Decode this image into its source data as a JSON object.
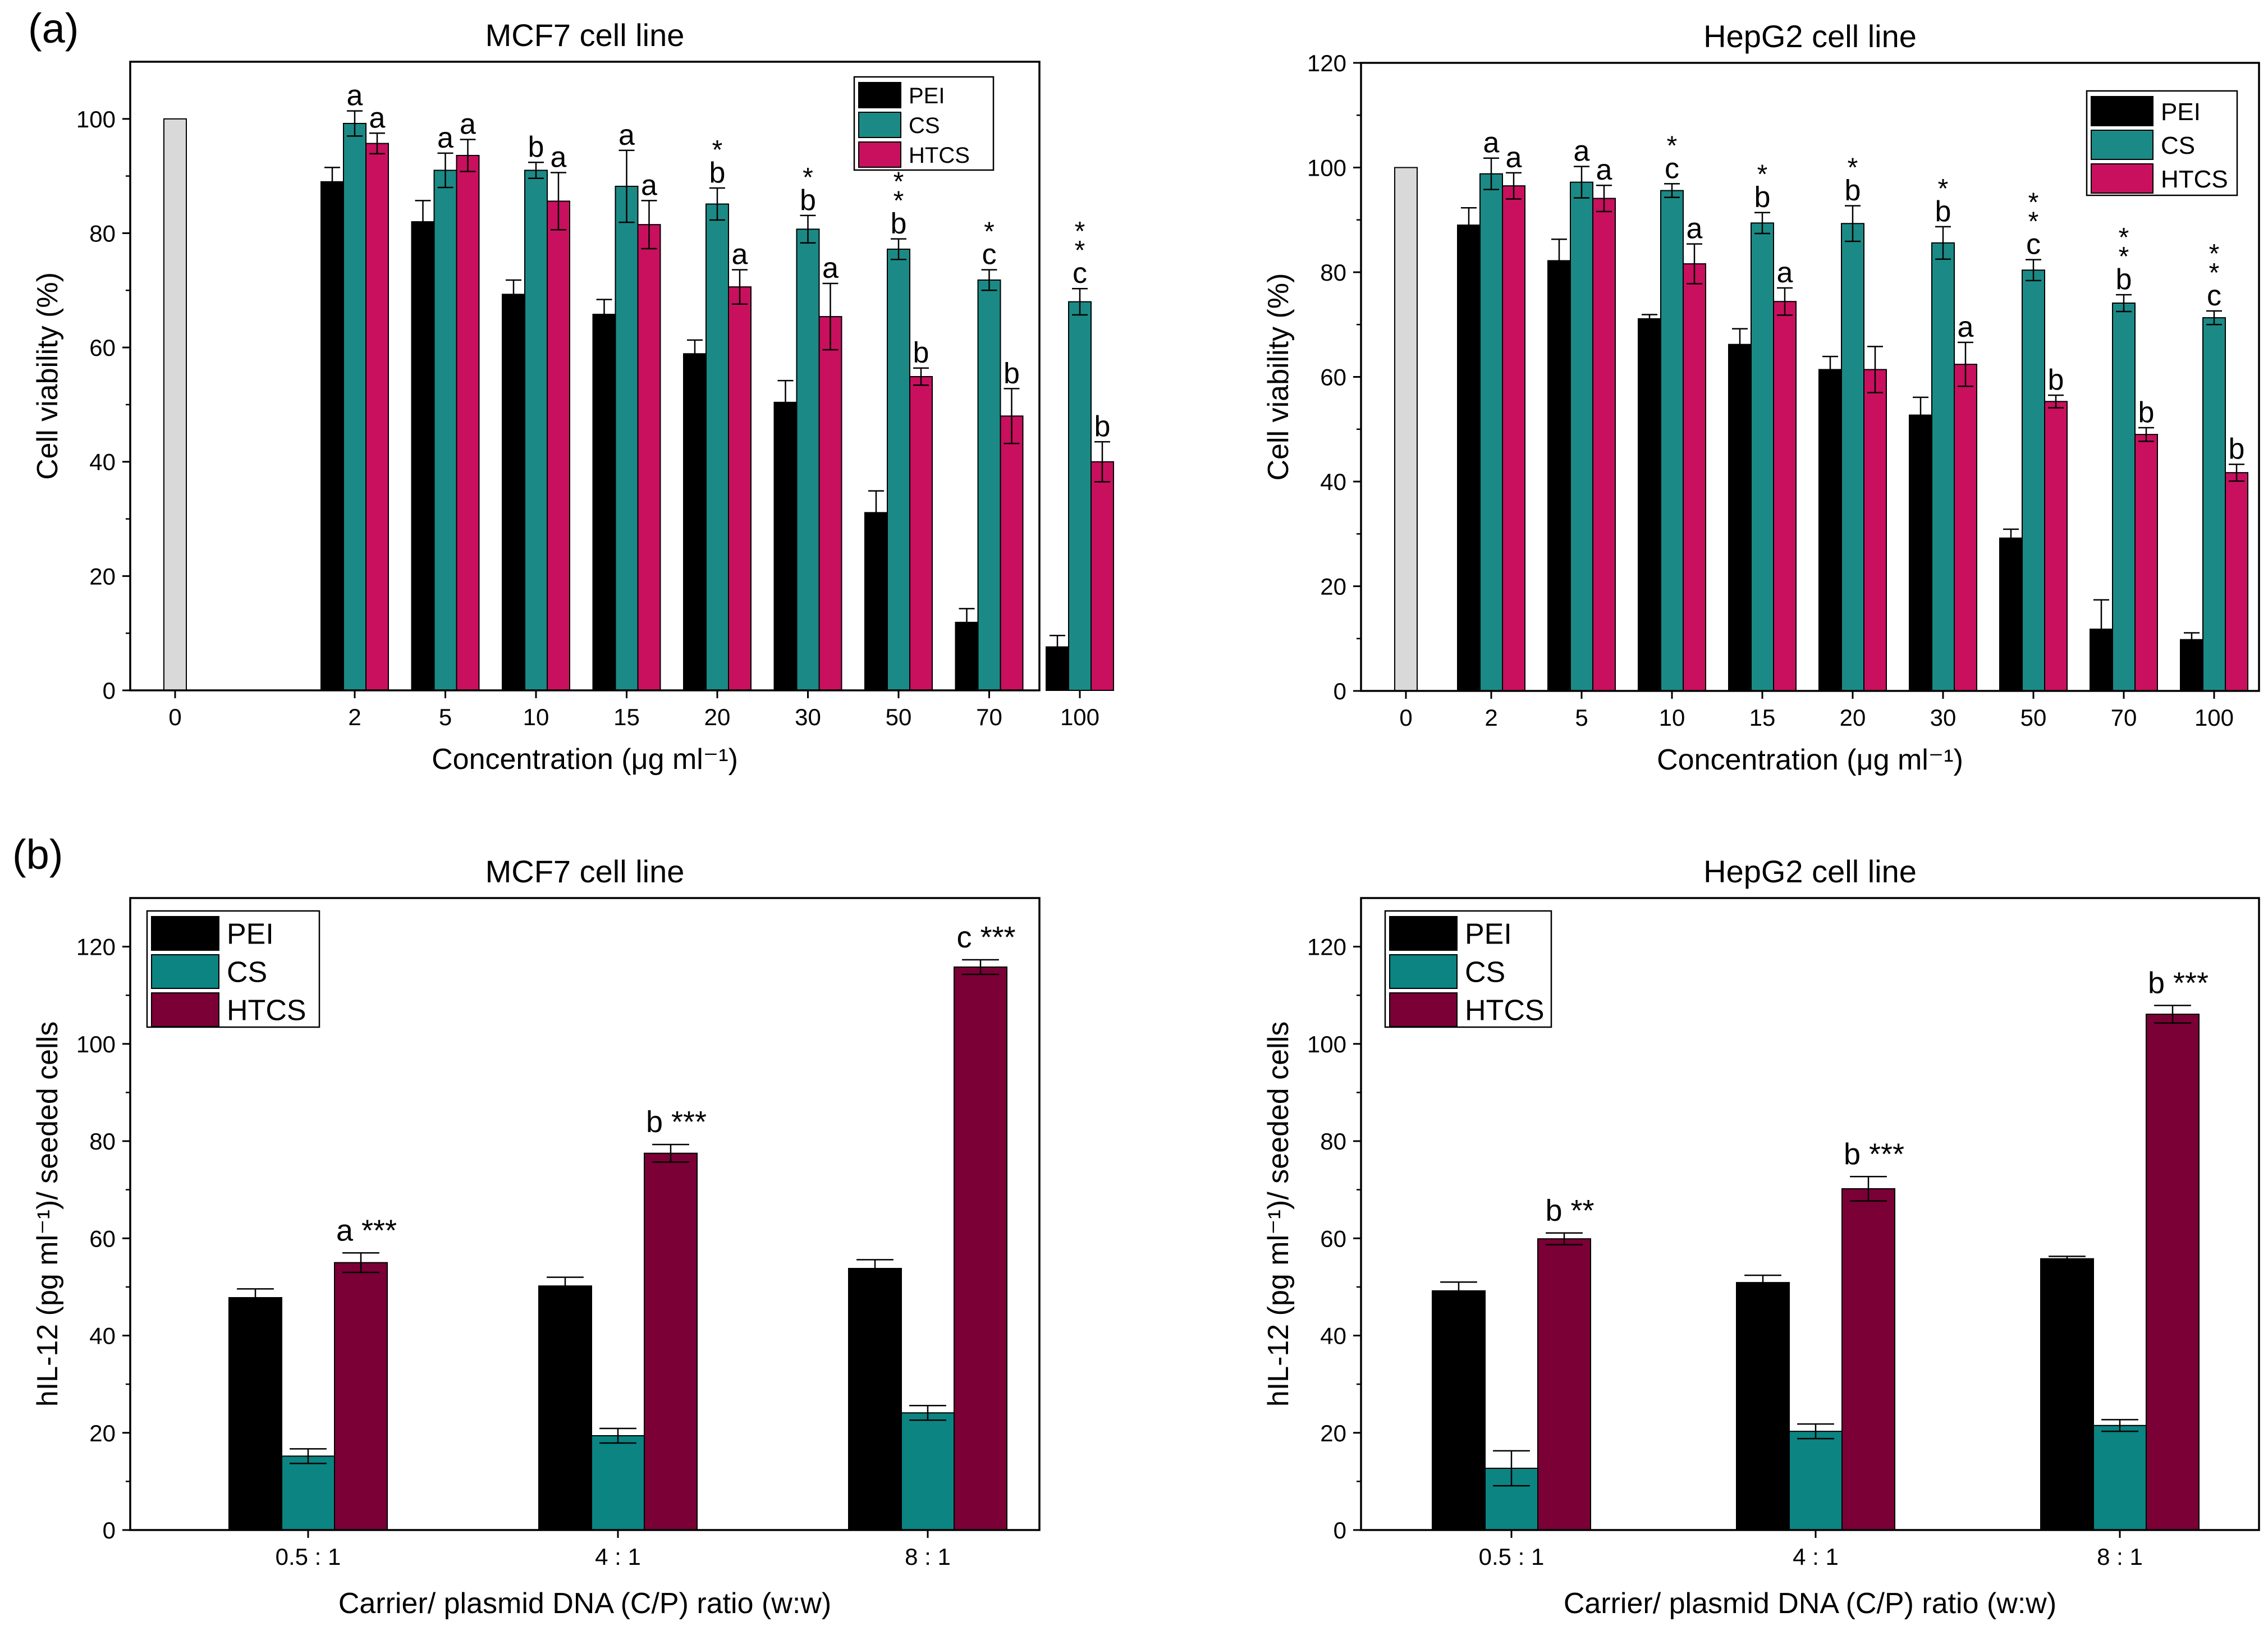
{
  "figure": {
    "panel_labels": [
      "(a)",
      "(b)"
    ]
  },
  "colors": {
    "PEI": "#000000",
    "CS_a": "#1b8a86",
    "HTCS_a": "#c8105e",
    "CS_b": "#0b8482",
    "HTCS_b": "#7a0036",
    "control": "#d9d9d9"
  },
  "chart_data": [
    {
      "type": "bar",
      "panel": "a",
      "title": "MCF7 cell line",
      "xlabel": "Concentration (μg ml⁻¹)",
      "ylabel": "Cell viability (%)",
      "ylim": [
        0,
        110
      ],
      "yticks": [
        0,
        20,
        40,
        60,
        80,
        100
      ],
      "legend": [
        "PEI",
        "CS",
        "HTCS"
      ],
      "legend_position": "top-right",
      "control": {
        "category": "0",
        "value": 100
      },
      "categories": [
        "2",
        "5",
        "10",
        "15",
        "20",
        "30",
        "50",
        "70",
        "100"
      ],
      "series": [
        {
          "name": "PEI",
          "values": [
            89,
            82,
            69.3,
            65.8,
            58.9,
            50.4,
            31.1,
            11.9,
            7.6
          ],
          "errors": [
            2.5,
            3.7,
            2.5,
            2.6,
            2.4,
            3.8,
            3.8,
            2.4,
            2.0
          ]
        },
        {
          "name": "CS",
          "values": [
            99.2,
            91,
            91,
            88.2,
            85.1,
            80.7,
            77.2,
            71.8,
            68
          ],
          "errors": [
            2.2,
            3.0,
            1.4,
            6.3,
            2.8,
            2.4,
            1.8,
            1.8,
            2.3
          ]
        },
        {
          "name": "HTCS",
          "values": [
            95.7,
            93.6,
            85.6,
            81.5,
            70.6,
            65.4,
            54.9,
            48,
            40
          ],
          "errors": [
            1.8,
            2.8,
            5.0,
            4.2,
            3.0,
            5.8,
            1.5,
            4.8,
            3.5
          ]
        }
      ],
      "annotations": [
        {
          "category": "2",
          "series": "CS",
          "text": "a"
        },
        {
          "category": "2",
          "series": "HTCS",
          "text": "a"
        },
        {
          "category": "5",
          "series": "CS",
          "text": "a"
        },
        {
          "category": "5",
          "series": "HTCS",
          "text": "a"
        },
        {
          "category": "10",
          "series": "CS",
          "text": "b"
        },
        {
          "category": "10",
          "series": "HTCS",
          "text": "a"
        },
        {
          "category": "15",
          "series": "CS",
          "text": "a"
        },
        {
          "category": "15",
          "series": "HTCS",
          "text": "a"
        },
        {
          "category": "20",
          "series": "CS",
          "text": "b",
          "stars": 1
        },
        {
          "category": "20",
          "series": "HTCS",
          "text": "a"
        },
        {
          "category": "30",
          "series": "CS",
          "text": "b",
          "stars": 1
        },
        {
          "category": "30",
          "series": "HTCS",
          "text": "a"
        },
        {
          "category": "50",
          "series": "CS",
          "text": "b",
          "stars": 2
        },
        {
          "category": "50",
          "series": "HTCS",
          "text": "b"
        },
        {
          "category": "70",
          "series": "CS",
          "text": "c",
          "stars": 1
        },
        {
          "category": "70",
          "series": "HTCS",
          "text": "b"
        },
        {
          "category": "100",
          "series": "CS",
          "text": "c",
          "stars": 2
        },
        {
          "category": "100",
          "series": "HTCS",
          "text": "b"
        }
      ]
    },
    {
      "type": "bar",
      "panel": "a",
      "title": "HepG2 cell line",
      "xlabel": "Concentration (μg ml⁻¹)",
      "ylabel": "Cell viability (%)",
      "ylim": [
        0,
        120
      ],
      "yticks": [
        0,
        20,
        40,
        60,
        80,
        100,
        120
      ],
      "legend": [
        "PEI",
        "CS",
        "HTCS"
      ],
      "legend_position": "top-right",
      "control": {
        "category": "0",
        "value": 100
      },
      "categories": [
        "2",
        "5",
        "10",
        "15",
        "20",
        "30",
        "50",
        "70",
        "100"
      ],
      "series": [
        {
          "name": "PEI",
          "values": [
            89,
            82.2,
            71.1,
            66.2,
            61.4,
            52.7,
            29.2,
            11.8,
            9.8
          ],
          "errors": [
            3.3,
            4.1,
            0.8,
            3.0,
            2.5,
            3.4,
            1.7,
            5.6,
            1.3
          ]
        },
        {
          "name": "CS",
          "values": [
            98.8,
            97.2,
            95.6,
            89.4,
            89.3,
            85.6,
            80.4,
            74.1,
            71.3
          ],
          "errors": [
            3.0,
            3.0,
            1.3,
            2.0,
            3.4,
            3.1,
            2.0,
            1.6,
            1.3
          ]
        },
        {
          "name": "HTCS",
          "values": [
            96.5,
            94.1,
            81.6,
            74.4,
            61.4,
            62.4,
            55.3,
            49,
            41.7
          ],
          "errors": [
            2.5,
            2.5,
            3.8,
            2.6,
            4.4,
            4.2,
            1.2,
            1.3,
            1.6
          ]
        }
      ],
      "annotations": [
        {
          "category": "2",
          "series": "CS",
          "text": "a"
        },
        {
          "category": "2",
          "series": "HTCS",
          "text": "a"
        },
        {
          "category": "5",
          "series": "CS",
          "text": "a"
        },
        {
          "category": "5",
          "series": "HTCS",
          "text": "a"
        },
        {
          "category": "10",
          "series": "CS",
          "text": "c",
          "stars": 1
        },
        {
          "category": "10",
          "series": "HTCS",
          "text": "a"
        },
        {
          "category": "15",
          "series": "CS",
          "text": "b",
          "stars": 1
        },
        {
          "category": "15",
          "series": "HTCS",
          "text": "a"
        },
        {
          "category": "20",
          "series": "CS",
          "text": "b",
          "stars": 1
        },
        {
          "category": "30",
          "series": "CS",
          "text": "b",
          "stars": 1
        },
        {
          "category": "30",
          "series": "HTCS",
          "text": "a"
        },
        {
          "category": "50",
          "series": "CS",
          "text": "c",
          "stars": 2
        },
        {
          "category": "50",
          "series": "HTCS",
          "text": "b"
        },
        {
          "category": "70",
          "series": "CS",
          "text": "b",
          "stars": 2
        },
        {
          "category": "70",
          "series": "HTCS",
          "text": "b"
        },
        {
          "category": "100",
          "series": "CS",
          "text": "c",
          "stars": 2
        },
        {
          "category": "100",
          "series": "HTCS",
          "text": "b"
        }
      ]
    },
    {
      "type": "bar",
      "panel": "b",
      "title": "MCF7 cell line",
      "xlabel": "Carrier/ plasmid DNA (C/P) ratio (w:w)",
      "ylabel": "hIL-12 (pg ml⁻¹)/ seeded cells",
      "ylim": [
        0,
        130
      ],
      "yticks": [
        0,
        20,
        40,
        60,
        80,
        100,
        120
      ],
      "legend": [
        "PEI",
        "CS",
        "HTCS"
      ],
      "legend_position": "top-left",
      "categories": [
        "0.5 : 1",
        "4 : 1",
        "8 : 1"
      ],
      "series": [
        {
          "name": "PEI",
          "values": [
            47.8,
            50.2,
            53.8
          ],
          "errors": [
            1.8,
            1.8,
            1.8
          ]
        },
        {
          "name": "CS",
          "values": [
            15.2,
            19.4,
            24.1
          ],
          "errors": [
            1.5,
            1.5,
            1.5
          ]
        },
        {
          "name": "HTCS",
          "values": [
            55,
            77.5,
            115.8
          ],
          "errors": [
            2.0,
            1.8,
            1.5
          ]
        }
      ],
      "annotations": [
        {
          "category": "0.5 : 1",
          "series": "HTCS",
          "text": "a ***"
        },
        {
          "category": "4 : 1",
          "series": "HTCS",
          "text": "b ***"
        },
        {
          "category": "8 : 1",
          "series": "HTCS",
          "text": "c ***"
        }
      ]
    },
    {
      "type": "bar",
      "panel": "b",
      "title": "HepG2 cell line",
      "xlabel": "Carrier/ plasmid DNA (C/P) ratio (w:w)",
      "ylabel": "hIL-12 (pg ml⁻¹)/ seeded cells",
      "ylim": [
        0,
        130
      ],
      "yticks": [
        0,
        20,
        40,
        60,
        80,
        100,
        120
      ],
      "legend": [
        "PEI",
        "CS",
        "HTCS"
      ],
      "legend_position": "top-left",
      "categories": [
        "0.5 : 1",
        "4 : 1",
        "8 : 1"
      ],
      "series": [
        {
          "name": "PEI",
          "values": [
            49.2,
            50.9,
            55.8
          ],
          "errors": [
            1.8,
            1.5,
            0.5
          ]
        },
        {
          "name": "CS",
          "values": [
            12.7,
            20.3,
            21.5
          ],
          "errors": [
            3.6,
            1.5,
            1.2
          ]
        },
        {
          "name": "HTCS",
          "values": [
            59.9,
            70.2,
            106.1
          ],
          "errors": [
            1.2,
            2.5,
            1.8
          ]
        }
      ],
      "annotations": [
        {
          "category": "0.5 : 1",
          "series": "HTCS",
          "text": "b **"
        },
        {
          "category": "4 : 1",
          "series": "HTCS",
          "text": "b ***"
        },
        {
          "category": "8 : 1",
          "series": "HTCS",
          "text": "b ***"
        }
      ]
    }
  ]
}
